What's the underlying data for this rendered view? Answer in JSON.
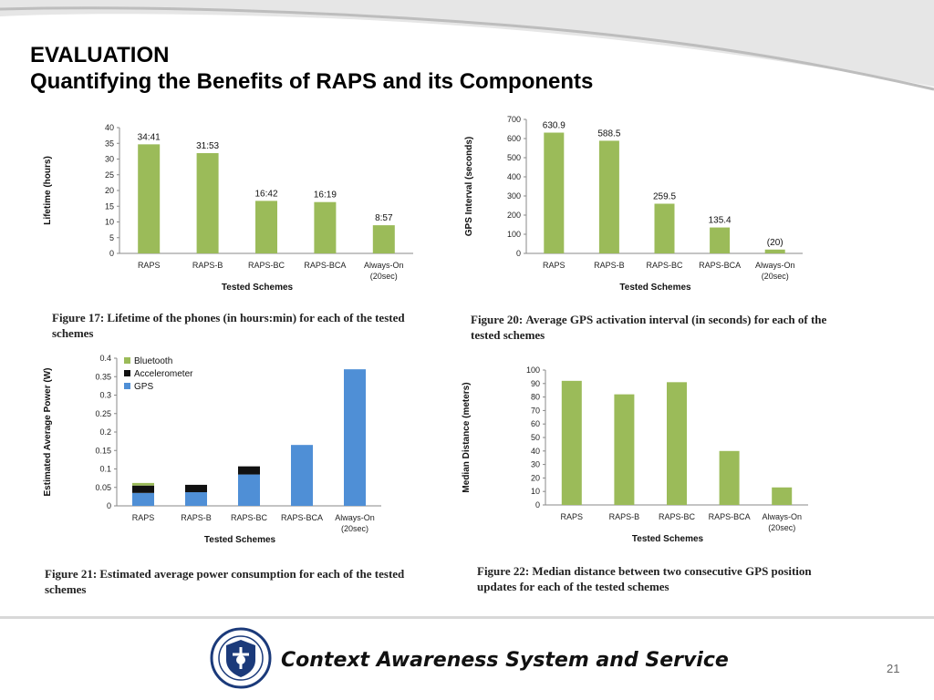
{
  "slide": {
    "heading": "EVALUATION",
    "subheading": "Quantifying the Benefits of RAPS and its Components",
    "footer": "Context Awareness System and Service",
    "page_number": "21"
  },
  "figures": [
    {
      "caption_label": "Figure 17:",
      "caption_text": "Lifetime of the phones (in hours:min) for each of the tested schemes"
    },
    {
      "caption_label": "Figure 20:",
      "caption_text": "Average GPS activation interval (in seconds) for each of the tested schemes"
    },
    {
      "caption_label": "Figure 21:",
      "caption_text": "Estimated average power consumption for each of the tested schemes"
    },
    {
      "caption_label": "Figure 22:",
      "caption_text": "Median distance between two consecutive GPS position updates for each of the tested schemes"
    }
  ],
  "colors": {
    "green": "#9bbb59",
    "blue": "#4f8fd6",
    "black": "#111111"
  },
  "chart_data": [
    {
      "type": "bar",
      "categories": [
        "RAPS",
        "RAPS-B",
        "RAPS-BC",
        "RAPS-BCA",
        "Always-On"
      ],
      "category_sub": [
        "",
        "",
        "",
        "",
        "(20sec)"
      ],
      "values": [
        34.68,
        31.88,
        16.7,
        16.32,
        8.95
      ],
      "data_labels": [
        "34:41",
        "31:53",
        "16:42",
        "16:19",
        "8:57"
      ],
      "xlabel": "Tested Schemes",
      "ylabel": "Lifetime (hours)",
      "ylim": [
        0,
        40
      ],
      "yticks": [
        0,
        5,
        10,
        15,
        20,
        25,
        30,
        35,
        40
      ]
    },
    {
      "type": "bar",
      "categories": [
        "RAPS",
        "RAPS-B",
        "RAPS-BC",
        "RAPS-BCA",
        "Always-On"
      ],
      "category_sub": [
        "",
        "",
        "",
        "",
        "(20sec)"
      ],
      "values": [
        630.9,
        588.5,
        259.5,
        135.4,
        20
      ],
      "data_labels": [
        "630.9",
        "588.5",
        "259.5",
        "135.4",
        "(20)"
      ],
      "xlabel": "Tested Schemes",
      "ylabel": "GPS Interval (seconds)",
      "ylim": [
        0,
        700
      ],
      "yticks": [
        0,
        100,
        200,
        300,
        400,
        500,
        600,
        700
      ]
    },
    {
      "type": "bar",
      "stacked": true,
      "categories": [
        "RAPS",
        "RAPS-B",
        "RAPS-BC",
        "RAPS-BCA",
        "Always-On"
      ],
      "category_sub": [
        "",
        "",
        "",
        "",
        "(20sec)"
      ],
      "series": [
        {
          "name": "GPS",
          "values": [
            0.035,
            0.037,
            0.085,
            0.165,
            0.37
          ]
        },
        {
          "name": "Accelerometer",
          "values": [
            0.02,
            0.02,
            0.022,
            0,
            0
          ]
        },
        {
          "name": "Bluetooth",
          "values": [
            0.007,
            0,
            0,
            0,
            0
          ]
        }
      ],
      "legend_order": [
        "Bluetooth",
        "Accelerometer",
        "GPS"
      ],
      "xlabel": "Tested Schemes",
      "ylabel": "Estimated Average Power (W)",
      "ylim": [
        0,
        0.4
      ],
      "yticks": [
        0,
        0.05,
        0.1,
        0.15,
        0.2,
        0.25,
        0.3,
        0.35,
        0.4
      ],
      "ytick_labels": [
        "0",
        "0.05",
        "0.1",
        "0.15",
        "0.2",
        "0.25",
        "0.3",
        "0.35",
        "0.4"
      ],
      "legend_position": "top-left"
    },
    {
      "type": "bar",
      "categories": [
        "RAPS",
        "RAPS-B",
        "RAPS-BC",
        "RAPS-BCA",
        "Always-On"
      ],
      "category_sub": [
        "",
        "",
        "",
        "",
        "(20sec)"
      ],
      "values": [
        92,
        82,
        91,
        40,
        13
      ],
      "xlabel": "Tested Schemes",
      "ylabel": "Median Distance (meters)",
      "ylim": [
        0,
        100
      ],
      "yticks": [
        0,
        10,
        20,
        30,
        40,
        50,
        60,
        70,
        80,
        90,
        100
      ]
    }
  ]
}
